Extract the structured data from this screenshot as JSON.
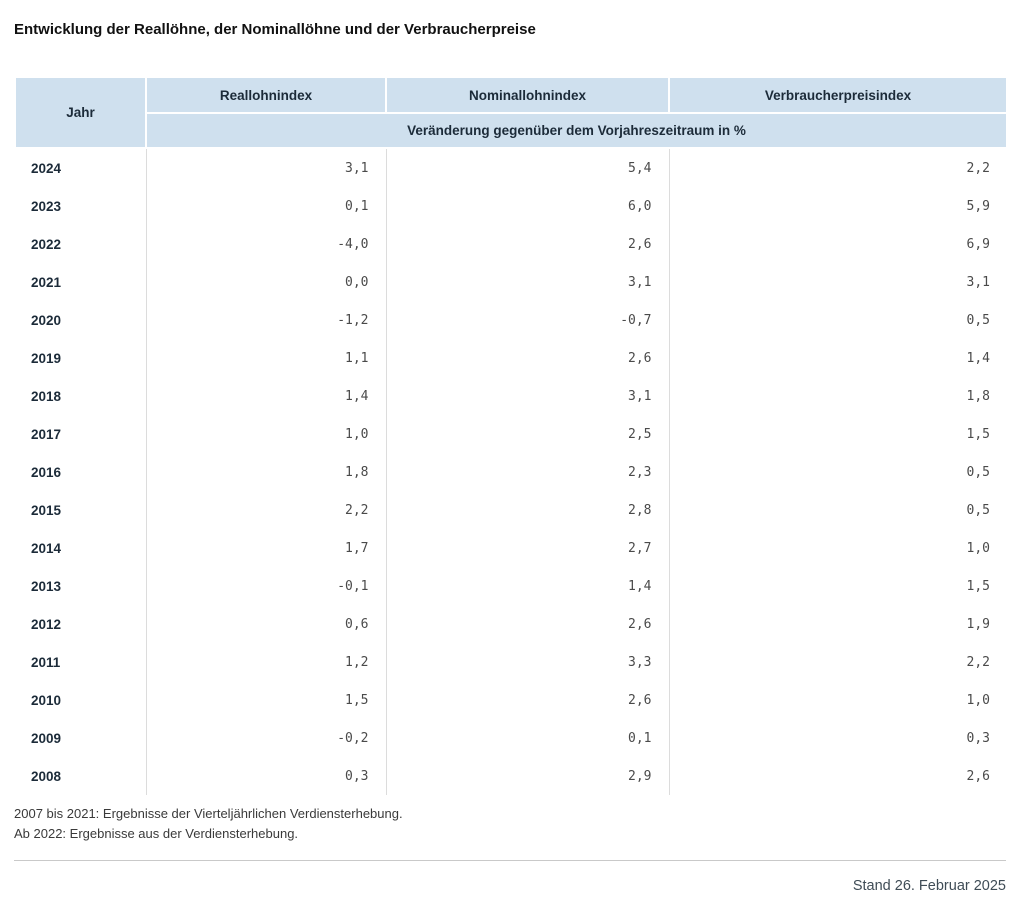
{
  "title": "Entwicklung der Reallöhne, der Nominallöhne und der Verbraucherpreise",
  "table": {
    "col_headers": {
      "jahr": "Jahr",
      "real": "Reallohnindex",
      "nominal": "Nominallohnindex",
      "vpi": "Verbraucherpreisindex"
    },
    "subheader": "Veränderung gegenüber dem Vorjahreszeitraum in %",
    "rows": [
      {
        "jahr": "2024",
        "real": "3,1",
        "nominal": "5,4",
        "vpi": "2,2"
      },
      {
        "jahr": "2023",
        "real": "0,1",
        "nominal": "6,0",
        "vpi": "5,9"
      },
      {
        "jahr": "2022",
        "real": "-4,0",
        "nominal": "2,6",
        "vpi": "6,9"
      },
      {
        "jahr": "2021",
        "real": "0,0",
        "nominal": "3,1",
        "vpi": "3,1"
      },
      {
        "jahr": "2020",
        "real": "-1,2",
        "nominal": "-0,7",
        "vpi": "0,5"
      },
      {
        "jahr": "2019",
        "real": "1,1",
        "nominal": "2,6",
        "vpi": "1,4"
      },
      {
        "jahr": "2018",
        "real": "1,4",
        "nominal": "3,1",
        "vpi": "1,8"
      },
      {
        "jahr": "2017",
        "real": "1,0",
        "nominal": "2,5",
        "vpi": "1,5"
      },
      {
        "jahr": "2016",
        "real": "1,8",
        "nominal": "2,3",
        "vpi": "0,5"
      },
      {
        "jahr": "2015",
        "real": "2,2",
        "nominal": "2,8",
        "vpi": "0,5"
      },
      {
        "jahr": "2014",
        "real": "1,7",
        "nominal": "2,7",
        "vpi": "1,0"
      },
      {
        "jahr": "2013",
        "real": "-0,1",
        "nominal": "1,4",
        "vpi": "1,5"
      },
      {
        "jahr": "2012",
        "real": "0,6",
        "nominal": "2,6",
        "vpi": "1,9"
      },
      {
        "jahr": "2011",
        "real": "1,2",
        "nominal": "3,3",
        "vpi": "2,2"
      },
      {
        "jahr": "2010",
        "real": "1,5",
        "nominal": "2,6",
        "vpi": "1,0"
      },
      {
        "jahr": "2009",
        "real": "-0,2",
        "nominal": "0,1",
        "vpi": "0,3"
      },
      {
        "jahr": "2008",
        "real": "0,3",
        "nominal": "2,9",
        "vpi": "2,6"
      }
    ]
  },
  "footnotes": {
    "line1": "2007 bis 2021: Ergebnisse der Vierteljährlichen Verdiensterhebung.",
    "line2": "Ab 2022: Ergebnisse aus der Verdiensterhebung."
  },
  "stand": "Stand 26. Februar 2025",
  "colors": {
    "header_bg": "#cfe0ee",
    "header_text": "#1c2b39",
    "value_text": "#4a4a4a",
    "column_divider": "#dcdcdc",
    "footer_rule": "#c9c9c9"
  },
  "chart_data": {
    "type": "table",
    "title": "Entwicklung der Reallöhne, der Nominallöhne und der Verbraucherpreise",
    "columns": [
      "Jahr",
      "Reallohnindex",
      "Nominallohnindex",
      "Verbraucherpreisindex"
    ],
    "unit_note": "Veränderung gegenüber dem Vorjahreszeitraum in %",
    "categories": [
      2024,
      2023,
      2022,
      2021,
      2020,
      2019,
      2018,
      2017,
      2016,
      2015,
      2014,
      2013,
      2012,
      2011,
      2010,
      2009,
      2008
    ],
    "series": [
      {
        "name": "Reallohnindex",
        "values": [
          3.1,
          0.1,
          -4.0,
          0.0,
          -1.2,
          1.1,
          1.4,
          1.0,
          1.8,
          2.2,
          1.7,
          -0.1,
          0.6,
          1.2,
          1.5,
          -0.2,
          0.3
        ]
      },
      {
        "name": "Nominallohnindex",
        "values": [
          5.4,
          6.0,
          2.6,
          3.1,
          -0.7,
          2.6,
          3.1,
          2.5,
          2.3,
          2.8,
          2.7,
          1.4,
          2.6,
          3.3,
          2.6,
          0.1,
          2.9
        ]
      },
      {
        "name": "Verbraucherpreisindex",
        "values": [
          2.2,
          5.9,
          6.9,
          3.1,
          0.5,
          1.4,
          1.8,
          1.5,
          0.5,
          0.5,
          1.0,
          1.5,
          1.9,
          2.2,
          1.0,
          0.3,
          2.6
        ]
      }
    ],
    "footnotes": [
      "2007 bis 2021: Ergebnisse der Vierteljährlichen Verdiensterhebung.",
      "Ab 2022: Ergebnisse aus der Verdiensterhebung."
    ],
    "as_of": "Stand 26. Februar 2025"
  }
}
